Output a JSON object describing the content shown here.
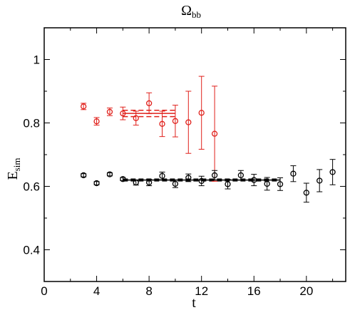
{
  "chart_data": {
    "type": "scatter",
    "title": "Ω",
    "title_subscript": "bb",
    "xlabel": "t",
    "ylabel": "E",
    "ylabel_subscript": "sim",
    "xlim": [
      0,
      23
    ],
    "ylim": [
      0.3,
      1.1
    ],
    "x_ticks": [
      0,
      4,
      8,
      12,
      16,
      20
    ],
    "x_tick_labels": [
      "0",
      "4",
      "8",
      "12",
      "16",
      "20"
    ],
    "y_ticks": [
      0.4,
      0.6,
      0.8,
      1.0
    ],
    "y_tick_labels": [
      "0.4",
      "0.6",
      "0.8",
      "1"
    ],
    "grid": false,
    "series": [
      {
        "color": "#e0201b",
        "marker": "open-circle",
        "x": [
          3,
          4,
          5,
          6,
          7,
          8,
          9,
          10,
          11,
          12,
          13
        ],
        "y": [
          0.852,
          0.805,
          0.835,
          0.83,
          0.815,
          0.862,
          0.797,
          0.806,
          0.802,
          0.832,
          0.766
        ],
        "yerr": [
          0.01,
          0.012,
          0.012,
          0.02,
          0.022,
          0.033,
          0.04,
          0.05,
          0.098,
          0.115,
          0.15
        ],
        "fit": {
          "x_range": [
            6,
            10
          ],
          "value": 0.83,
          "band": [
            0.82,
            0.84
          ]
        }
      },
      {
        "color": "#000000",
        "marker": "open-circle",
        "x": [
          3,
          4,
          5,
          6,
          7,
          8,
          9,
          10,
          11,
          12,
          13,
          14,
          15,
          16,
          17,
          18,
          19,
          20,
          21,
          22
        ],
        "y": [
          0.635,
          0.61,
          0.638,
          0.623,
          0.612,
          0.612,
          0.633,
          0.608,
          0.627,
          0.617,
          0.635,
          0.607,
          0.635,
          0.62,
          0.608,
          0.607,
          0.64,
          0.58,
          0.618,
          0.645
        ],
        "yerr": [
          0.005,
          0.005,
          0.005,
          0.005,
          0.008,
          0.01,
          0.012,
          0.012,
          0.012,
          0.015,
          0.015,
          0.015,
          0.015,
          0.018,
          0.02,
          0.02,
          0.025,
          0.03,
          0.035,
          0.04
        ],
        "fit": {
          "x_range": [
            6,
            18
          ],
          "value": 0.62,
          "band": [
            0.617,
            0.623
          ]
        }
      }
    ]
  }
}
